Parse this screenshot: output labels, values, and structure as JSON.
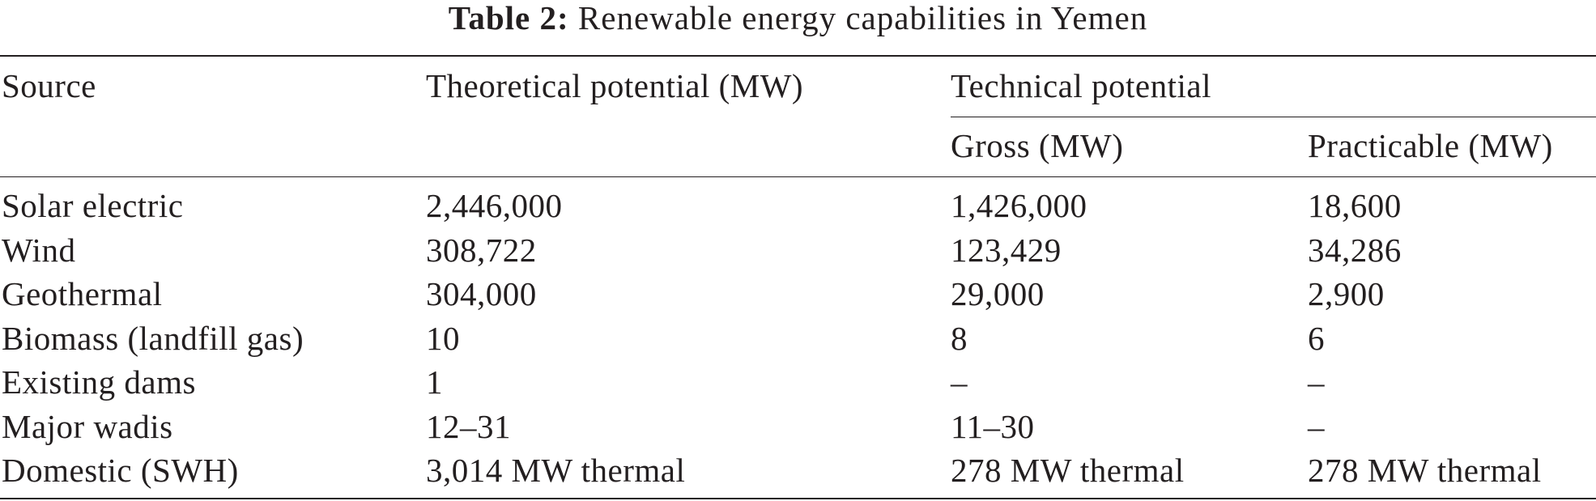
{
  "table": {
    "title_label": "Table 2:",
    "title_text": "Renewable energy capabilities in Yemen",
    "headers": {
      "source": "Source",
      "theoretical": "Theoretical potential (MW)",
      "technical": "Technical potential",
      "gross": "Gross (MW)",
      "practicable": "Practicable (MW)"
    },
    "rows": [
      {
        "source": "Solar electric",
        "theoretical": "2,446,000",
        "gross": "1,426,000",
        "practicable": "18,600"
      },
      {
        "source": "Wind",
        "theoretical": "308,722",
        "gross": "123,429",
        "practicable": "34,286"
      },
      {
        "source": "Geothermal",
        "theoretical": "304,000",
        "gross": "29,000",
        "practicable": "2,900"
      },
      {
        "source": "Biomass (landfill gas)",
        "theoretical": "10",
        "gross": "8",
        "practicable": "6"
      },
      {
        "source": "Existing dams",
        "theoretical": "1",
        "gross": "–",
        "practicable": "–"
      },
      {
        "source": "Major wadis",
        "theoretical": "12–31",
        "gross": "11–30",
        "practicable": "–"
      },
      {
        "source": "Domestic (SWH)",
        "theoretical": "3,014 MW thermal",
        "gross": "278 MW thermal",
        "practicable": "278 MW thermal"
      }
    ]
  }
}
